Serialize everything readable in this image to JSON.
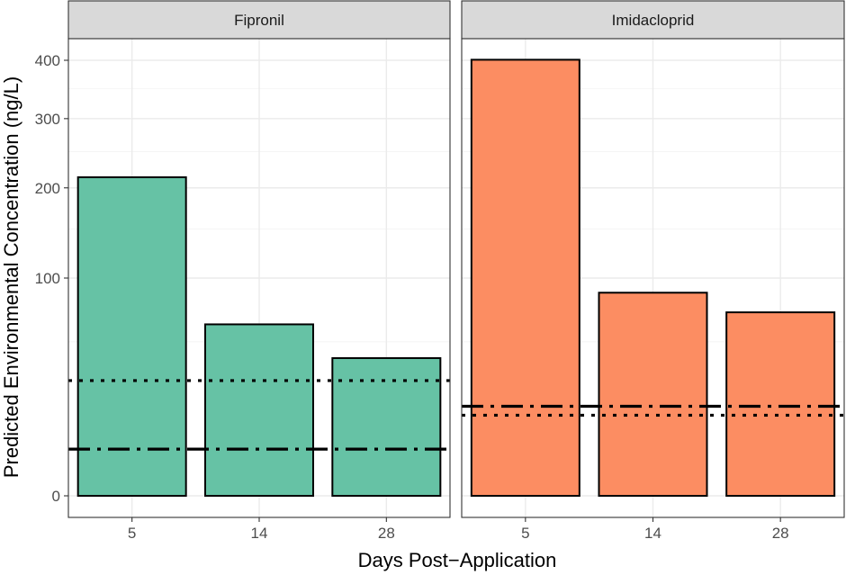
{
  "chart_data": {
    "type": "bar",
    "xlabel": "Days Post−Application",
    "ylabel": "Predicted Environmental Concentration (ng/L)",
    "y_scale": "sqrt",
    "ylim": [
      0,
      430
    ],
    "yticks": [
      0,
      100,
      200,
      300,
      400
    ],
    "grid": true,
    "legend": "none",
    "categories": [
      "5",
      "14",
      "28"
    ],
    "panels": [
      {
        "label": "Fipronil",
        "color": "#66C2A5",
        "values": [
          214,
          62,
          40
        ],
        "reference_lines": [
          {
            "style": "dotted",
            "value": 28
          },
          {
            "style": "dashdot",
            "value": 4.6
          }
        ]
      },
      {
        "label": "Imidacloprid",
        "color": "#FC8D62",
        "values": [
          401,
          87,
          71
        ],
        "reference_lines": [
          {
            "style": "dashdot",
            "value": 16.9
          },
          {
            "style": "dotted",
            "value": 13.7
          }
        ]
      }
    ]
  }
}
